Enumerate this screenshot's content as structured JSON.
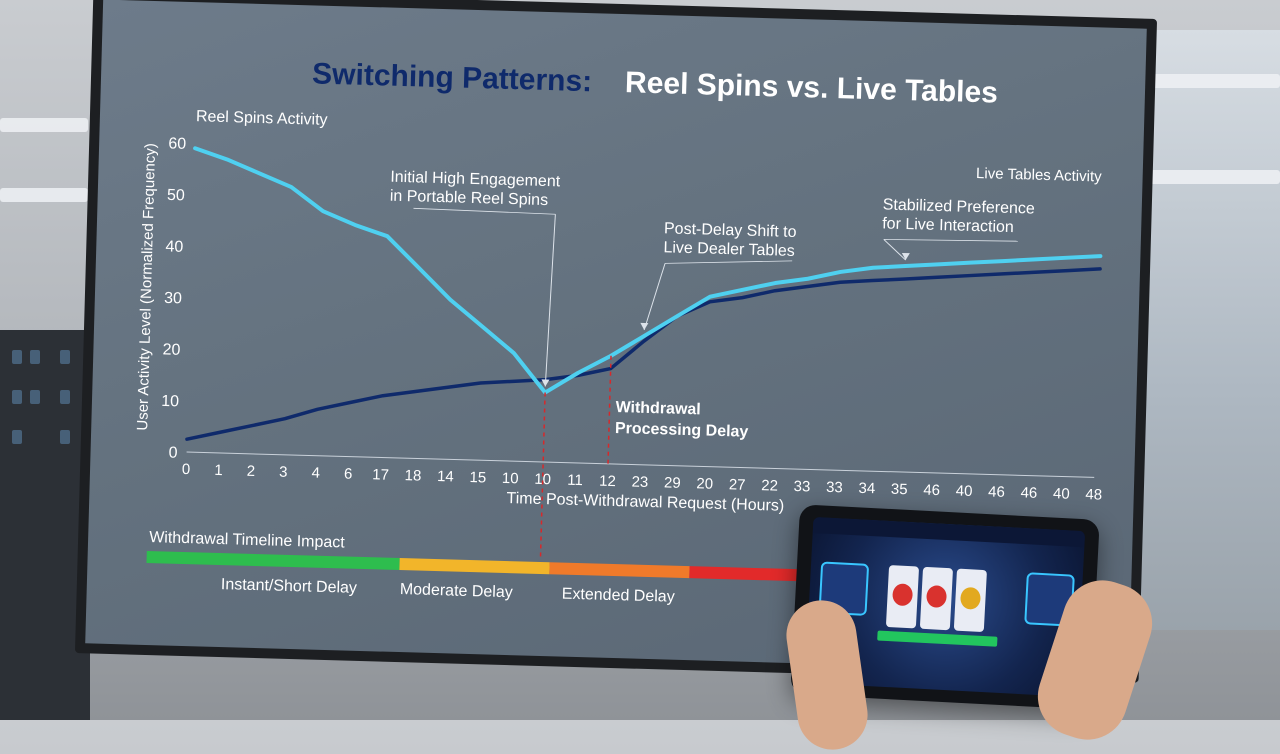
{
  "chart_data": {
    "type": "line",
    "title_part1": "Switching Patterns:",
    "title_part2": "Reel Spins vs. Live Tables",
    "xlabel": "Time Post-Withdrawal Request (Hours)",
    "ylabel": "User Activity Level (Normalized Frequency)",
    "ylim": [
      0,
      60
    ],
    "yticks": [
      0,
      10,
      20,
      30,
      40,
      50,
      60
    ],
    "xtick_labels": [
      "0",
      "1",
      "2",
      "3",
      "4",
      "6",
      "17",
      "18",
      "14",
      "15",
      "10",
      "10",
      "11",
      "12",
      "23",
      "29",
      "20",
      "27",
      "22",
      "33",
      "33",
      "34",
      "35",
      "46",
      "40",
      "46",
      "46",
      "40",
      "48"
    ],
    "series": [
      {
        "name": "Reel Spins Activity",
        "color": "#4fd0f0",
        "values": [
          59,
          57,
          54.5,
          52,
          47.5,
          45,
          43,
          37,
          31,
          26,
          21,
          13.5,
          17.5,
          21,
          25,
          29,
          33,
          34.5,
          36,
          37,
          38.5,
          39.5,
          40,
          40.5,
          41,
          41.5,
          42,
          42.5,
          43
        ]
      },
      {
        "name": "Live Tables Activity",
        "color": "#0f2a6b",
        "values": [
          2.5,
          4,
          5.5,
          7,
          9,
          10.5,
          12,
          13,
          14,
          15,
          15.5,
          16,
          17,
          18.5,
          24,
          29,
          32,
          33,
          34.5,
          35.5,
          36.5,
          37,
          37.5,
          38,
          38.5,
          39,
          39.5,
          40,
          40.5
        ]
      }
    ],
    "annotations": [
      {
        "text_lines": [
          "Initial High Engagement",
          "in Portable Reel Spins"
        ],
        "points_to_index": 11
      },
      {
        "text_lines": [
          "Post-Delay Shift to",
          "Live Dealer Tables"
        ],
        "points_to_index": 14
      },
      {
        "text_lines": [
          "Stabilized Preference",
          "for Live Interaction"
        ],
        "points_to_index": 22
      },
      {
        "text_lines": [
          "Withdrawal",
          "Processing Delay"
        ],
        "marker_index": 14
      }
    ],
    "timeline": {
      "title": "Withdrawal Timeline Impact",
      "segments": [
        {
          "label": "Instant/Short Delay",
          "color": "#2ebd4e"
        },
        {
          "label": "Moderate Delay",
          "color": "#f2b52a"
        },
        {
          "label": "Extended Delay",
          "color": "#f07a2a"
        },
        {
          "label": "",
          "color": "#e22a2a"
        }
      ]
    },
    "colors": {
      "title_dark": "#0f2a6b",
      "title_light": "#ffffff",
      "annotation_text": "#ffffff",
      "marker_line": "#d8282a"
    }
  }
}
